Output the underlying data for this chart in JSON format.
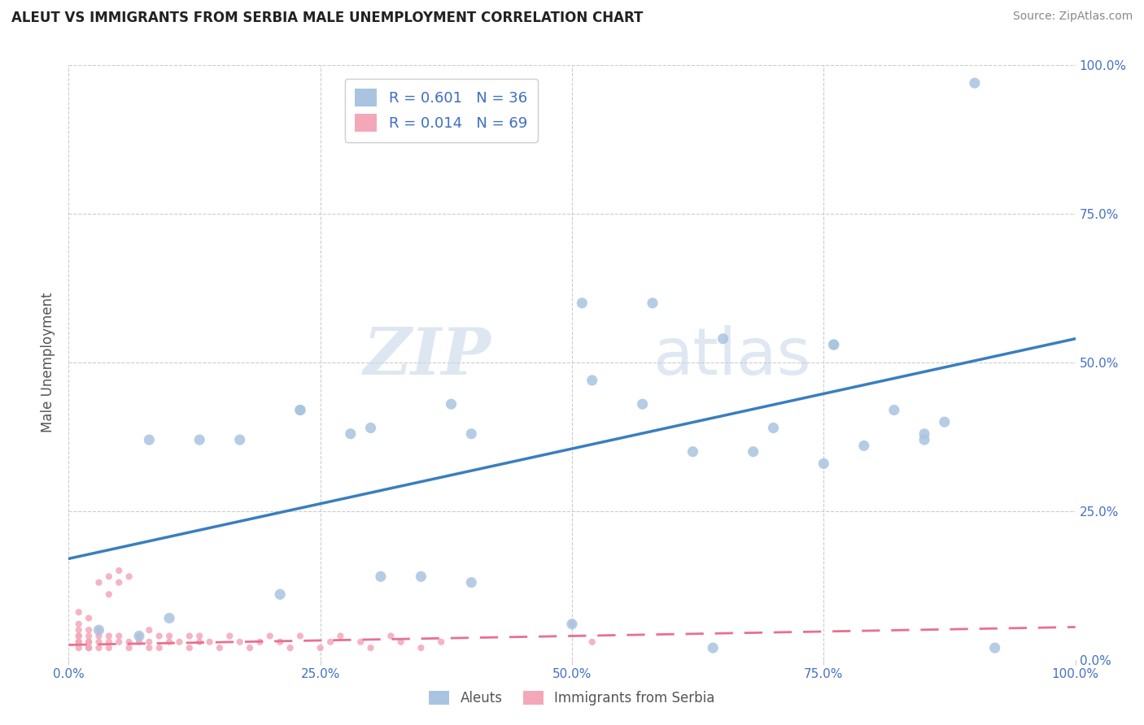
{
  "title": "ALEUT VS IMMIGRANTS FROM SERBIA MALE UNEMPLOYMENT CORRELATION CHART",
  "source": "Source: ZipAtlas.com",
  "ylabel": "Male Unemployment",
  "xlim": [
    0,
    1.0
  ],
  "ylim": [
    0,
    1.0
  ],
  "xtick_vals": [
    0.0,
    0.25,
    0.5,
    0.75,
    1.0
  ],
  "xtick_labels": [
    "0.0%",
    "25.0%",
    "50.0%",
    "75.0%",
    "100.0%"
  ],
  "ytick_vals": [
    0.0,
    0.25,
    0.5,
    0.75,
    1.0
  ],
  "right_ytick_labels": [
    "0.0%",
    "25.0%",
    "50.0%",
    "75.0%",
    "100.0%"
  ],
  "aleut_color": "#a8c4e0",
  "serbia_color": "#f4a7b9",
  "aleut_line_color": "#3a7ebf",
  "serbia_line_color": "#e87090",
  "aleut_R": 0.601,
  "aleut_N": 36,
  "serbia_R": 0.014,
  "serbia_N": 69,
  "watermark_zip": "ZIP",
  "watermark_atlas": "atlas",
  "legend_label_1": "Aleuts",
  "legend_label_2": "Immigrants from Serbia",
  "aleut_line_x0": 0.0,
  "aleut_line_y0": 0.17,
  "aleut_line_x1": 1.0,
  "aleut_line_y1": 0.54,
  "serbia_line_x0": 0.0,
  "serbia_line_y0": 0.025,
  "serbia_line_x1": 1.0,
  "serbia_line_y1": 0.055,
  "aleut_x": [
    0.03,
    0.07,
    0.13,
    0.23,
    0.23,
    0.28,
    0.3,
    0.31,
    0.38,
    0.4,
    0.51,
    0.52,
    0.58,
    0.64,
    0.65,
    0.7,
    0.76,
    0.79,
    0.82,
    0.85,
    0.9,
    0.08,
    0.1,
    0.17,
    0.21,
    0.35,
    0.4,
    0.57,
    0.62,
    0.68,
    0.75,
    0.76,
    0.85,
    0.87,
    0.92,
    0.5
  ],
  "aleut_y": [
    0.05,
    0.04,
    0.37,
    0.42,
    0.42,
    0.38,
    0.39,
    0.14,
    0.43,
    0.38,
    0.6,
    0.47,
    0.6,
    0.02,
    0.54,
    0.39,
    0.53,
    0.36,
    0.42,
    0.38,
    0.97,
    0.37,
    0.07,
    0.37,
    0.11,
    0.14,
    0.13,
    0.43,
    0.35,
    0.35,
    0.33,
    0.53,
    0.37,
    0.4,
    0.02,
    0.06
  ],
  "serbia_x": [
    0.01,
    0.01,
    0.01,
    0.01,
    0.01,
    0.01,
    0.01,
    0.01,
    0.02,
    0.02,
    0.02,
    0.02,
    0.02,
    0.02,
    0.02,
    0.02,
    0.02,
    0.03,
    0.03,
    0.03,
    0.03,
    0.03,
    0.04,
    0.04,
    0.04,
    0.04,
    0.04,
    0.05,
    0.05,
    0.05,
    0.05,
    0.06,
    0.06,
    0.06,
    0.07,
    0.07,
    0.08,
    0.08,
    0.08,
    0.09,
    0.09,
    0.1,
    0.1,
    0.11,
    0.12,
    0.12,
    0.13,
    0.13,
    0.14,
    0.15,
    0.16,
    0.17,
    0.18,
    0.19,
    0.2,
    0.21,
    0.22,
    0.23,
    0.25,
    0.26,
    0.27,
    0.29,
    0.3,
    0.32,
    0.33,
    0.35,
    0.37,
    0.5,
    0.52
  ],
  "serbia_y": [
    0.03,
    0.04,
    0.02,
    0.05,
    0.03,
    0.04,
    0.06,
    0.08,
    0.03,
    0.02,
    0.04,
    0.03,
    0.05,
    0.02,
    0.07,
    0.03,
    0.02,
    0.03,
    0.02,
    0.04,
    0.05,
    0.13,
    0.03,
    0.02,
    0.04,
    0.11,
    0.14,
    0.03,
    0.04,
    0.13,
    0.15,
    0.02,
    0.03,
    0.14,
    0.03,
    0.04,
    0.02,
    0.05,
    0.03,
    0.04,
    0.02,
    0.03,
    0.04,
    0.03,
    0.02,
    0.04,
    0.03,
    0.04,
    0.03,
    0.02,
    0.04,
    0.03,
    0.02,
    0.03,
    0.04,
    0.03,
    0.02,
    0.04,
    0.02,
    0.03,
    0.04,
    0.03,
    0.02,
    0.04,
    0.03,
    0.02,
    0.03,
    0.06,
    0.03
  ]
}
